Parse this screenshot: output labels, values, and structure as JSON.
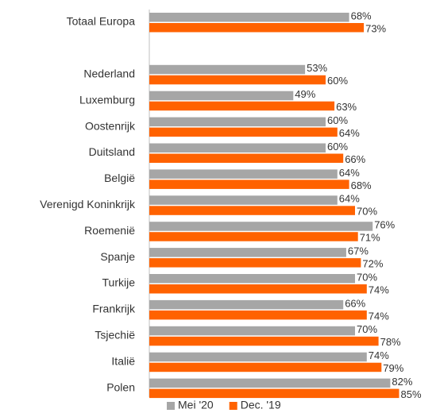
{
  "chart_data": {
    "type": "bar",
    "orientation": "horizontal",
    "categories": [
      "Totaal Europa",
      null,
      "Nederland",
      "Luxemburg",
      "Oostenrijk",
      "Duitsland",
      "België",
      "Verenigd Koninkrijk",
      "Roemenië",
      "Spanje",
      "Turkije",
      "Frankrijk",
      "Tsjechië",
      "Italië",
      "Polen"
    ],
    "series": [
      {
        "name": "Mei '20",
        "color": "#a6a6a6",
        "values": [
          68,
          null,
          53,
          49,
          60,
          60,
          64,
          64,
          76,
          67,
          70,
          66,
          70,
          74,
          82
        ],
        "value_labels": [
          "68%",
          null,
          "53%",
          "49%",
          "60%",
          "60%",
          "64%",
          "64%",
          "76%",
          "67%",
          "70%",
          "66%",
          "70%",
          "74%",
          "82%"
        ]
      },
      {
        "name": "Dec. '19",
        "color": "#ff6200",
        "values": [
          73,
          null,
          60,
          63,
          64,
          66,
          68,
          70,
          71,
          72,
          74,
          74,
          78,
          79,
          85
        ],
        "value_labels": [
          "73%",
          null,
          "60%",
          "63%",
          "64%",
          "66%",
          "68%",
          "70%",
          "71%",
          "72%",
          "74%",
          "74%",
          "78%",
          "79%",
          "85%"
        ]
      }
    ],
    "xlim": [
      0,
      100
    ],
    "legend": "bottom"
  }
}
